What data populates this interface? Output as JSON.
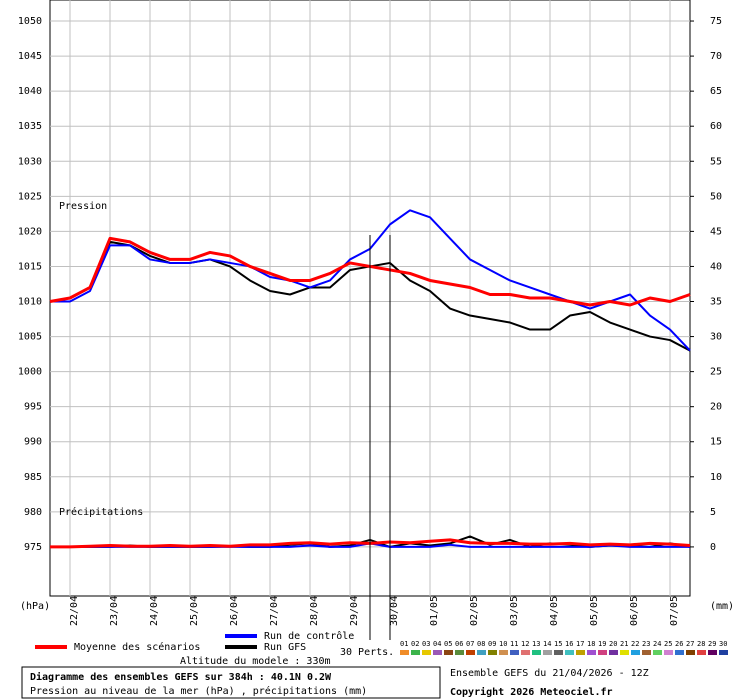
{
  "chart_data": {
    "type": "line",
    "title": "Diagramme des ensembles GEFS sur 384h : 40.1N 0.2W",
    "subtitle": "Pression au niveau de la mer (hPa) , précipitations (mm)",
    "ylabel": "(hPa)",
    "y2label": "(mm)",
    "pressure_label": "Pression",
    "precip_label": "Précipitations",
    "members_label": "30 Perts.",
    "altitude": "Altitude du modele : 330m",
    "run_info": "Ensemble GEFS du 21/04/2026 - 12Z",
    "copyright": "Copyright 2026 Meteociel.fr",
    "grid": true,
    "xlim": [
      0,
      384
    ],
    "xticks": [
      {
        "value": 12,
        "label": "22/04"
      },
      {
        "value": 36,
        "label": "23/04"
      },
      {
        "value": 60,
        "label": "24/04"
      },
      {
        "value": 84,
        "label": "25/04"
      },
      {
        "value": 108,
        "label": "26/04"
      },
      {
        "value": 132,
        "label": "27/04"
      },
      {
        "value": 156,
        "label": "28/04"
      },
      {
        "value": 180,
        "label": "29/04"
      },
      {
        "value": 204,
        "label": "30/04"
      },
      {
        "value": 228,
        "label": "01/05"
      },
      {
        "value": 252,
        "label": "02/05"
      },
      {
        "value": 276,
        "label": "03/05"
      },
      {
        "value": 300,
        "label": "04/05"
      },
      {
        "value": 324,
        "label": "05/05"
      },
      {
        "value": 348,
        "label": "06/05"
      },
      {
        "value": 372,
        "label": "07/05"
      }
    ],
    "ylim": [
      968,
      1053
    ],
    "yticks": [
      975,
      980,
      985,
      990,
      995,
      1000,
      1005,
      1010,
      1015,
      1020,
      1025,
      1030,
      1035,
      1040,
      1045,
      1050
    ],
    "y2lim": [
      -7,
      78
    ],
    "y2ticks": [
      0,
      5,
      10,
      15,
      20,
      25,
      30,
      35,
      40,
      45,
      50,
      55,
      60,
      65,
      70,
      75
    ],
    "x": [
      0,
      12,
      24,
      36,
      48,
      60,
      72,
      84,
      96,
      108,
      120,
      132,
      144,
      156,
      168,
      180,
      192,
      204,
      216,
      228,
      240,
      252,
      264,
      276,
      288,
      300,
      312,
      324,
      336,
      348,
      360,
      372,
      384
    ],
    "series": [
      {
        "name": "Moyenne des scénarios",
        "color": "#ff0000",
        "width": 3,
        "values": [
          1010,
          1010.5,
          1012,
          1019,
          1018.5,
          1017,
          1016,
          1016,
          1017,
          1016.5,
          1015,
          1014,
          1013,
          1013,
          1014,
          1015.5,
          1015,
          1014.5,
          1014,
          1013,
          1012.5,
          1012,
          1011,
          1011,
          1010.5,
          1010.5,
          1010,
          1009.5,
          1010,
          1009.5,
          1010.5,
          1010,
          1011
        ],
        "precip": [
          0,
          0,
          0.1,
          0.2,
          0.1,
          0.1,
          0.2,
          0.1,
          0.2,
          0.1,
          0.3,
          0.3,
          0.5,
          0.6,
          0.4,
          0.6,
          0.5,
          0.7,
          0.6,
          0.8,
          1,
          0.6,
          0.5,
          0.5,
          0.4,
          0.4,
          0.5,
          0.3,
          0.4,
          0.3,
          0.5,
          0.4,
          0.2
        ]
      },
      {
        "name": "Run de contrôle",
        "color": "#0000ff",
        "width": 2,
        "values": [
          1010,
          1010,
          1011.5,
          1018,
          1018,
          1016,
          1015.5,
          1015.5,
          1016,
          1015.5,
          1015,
          1013.5,
          1013,
          1012,
          1013,
          1016,
          1017.5,
          1021,
          1023,
          1022,
          1019,
          1016,
          1014.5,
          1013,
          1012,
          1011,
          1010,
          1009,
          1010,
          1011,
          1008,
          1006,
          1003
        ],
        "precip": [
          0,
          0,
          0,
          0,
          0,
          0,
          0,
          0,
          0,
          0,
          0,
          0,
          0,
          0.2,
          0,
          0,
          0.5,
          0,
          0,
          0,
          0.3,
          0,
          0,
          0,
          0,
          0,
          0,
          0,
          0.2,
          0,
          0,
          0,
          0
        ]
      },
      {
        "name": "Run GFS",
        "color": "#000000",
        "width": 2,
        "values": [
          1010,
          1010.5,
          1012,
          1018.5,
          1018,
          1016.5,
          1015.5,
          1015.5,
          1016,
          1015,
          1013,
          1011.5,
          1011,
          1012,
          1012,
          1014.5,
          1015,
          1015.5,
          1013,
          1011.5,
          1009,
          1008,
          1007.5,
          1007,
          1006,
          1006,
          1008,
          1008.5,
          1007,
          1006,
          1005,
          1004.5,
          1003
        ],
        "precip": [
          0,
          0,
          0,
          0,
          0.2,
          0,
          0,
          0,
          0,
          0.1,
          0,
          0,
          0.3,
          0.5,
          0,
          0.2,
          1,
          0,
          0.5,
          0.2,
          0.5,
          1.5,
          0.3,
          1,
          0,
          0.5,
          0.3,
          0,
          0.2,
          0.1,
          0,
          0.5,
          0
        ]
      }
    ],
    "members": [
      {
        "name": "01",
        "color": "#f08c28"
      },
      {
        "name": "02",
        "color": "#3cb44b"
      },
      {
        "name": "03",
        "color": "#e6c800"
      },
      {
        "name": "04",
        "color": "#9b59b6"
      },
      {
        "name": "05",
        "color": "#8b4513"
      },
      {
        "name": "06",
        "color": "#5a8c3c"
      },
      {
        "name": "07",
        "color": "#c04000"
      },
      {
        "name": "08",
        "color": "#40a0c0"
      },
      {
        "name": "09",
        "color": "#808000"
      },
      {
        "name": "10",
        "color": "#d09050"
      },
      {
        "name": "11",
        "color": "#4060c0"
      },
      {
        "name": "12",
        "color": "#e07070"
      },
      {
        "name": "13",
        "color": "#20c080"
      },
      {
        "name": "14",
        "color": "#a0a0a0"
      },
      {
        "name": "15",
        "color": "#606060"
      },
      {
        "name": "16",
        "color": "#40c0c0"
      },
      {
        "name": "17",
        "color": "#c0a000"
      },
      {
        "name": "18",
        "color": "#a050d0"
      },
      {
        "name": "19",
        "color": "#d04080"
      },
      {
        "name": "20",
        "color": "#7030a0"
      },
      {
        "name": "21",
        "color": "#e0e000"
      },
      {
        "name": "22",
        "color": "#20a0e0"
      },
      {
        "name": "23",
        "color": "#a06030"
      },
      {
        "name": "24",
        "color": "#60d060"
      },
      {
        "name": "25",
        "color": "#d080d0"
      },
      {
        "name": "26",
        "color": "#3070d0"
      },
      {
        "name": "27",
        "color": "#804000"
      },
      {
        "name": "28",
        "color": "#e04040"
      },
      {
        "name": "29",
        "color": "#600060"
      },
      {
        "name": "30",
        "color": "#2040a0"
      }
    ]
  }
}
